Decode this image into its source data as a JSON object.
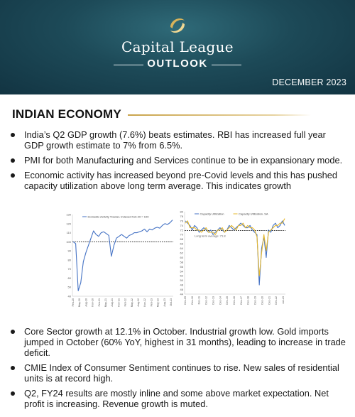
{
  "header": {
    "brand": "Capital League",
    "subtitle": "OUTLOOK",
    "date": "DECEMBER 2023",
    "accent_color": "#c9a34a",
    "background_color": "#1d4a58"
  },
  "section": {
    "title": "INDIAN ECONOMY"
  },
  "bullets_top": [
    "India’s Q2 GDP growth (7.6%) beats estimates. RBI has increased full year GDP growth estimate to 7% from 6.5%.",
    "PMI for both Manufacturing and Services continue to be in expansionary mode.",
    "Economic activity has increased beyond pre-Covid levels and this has pushed capacity utilization above long term average. This indicates growth"
  ],
  "bullets_bottom": [
    "Core Sector growth at 12.1% in October. Industrial growth low. Gold imports jumped in October (60% YoY, highest in 31 months), leading to increase in trade deficit.",
    "CMIE Index of Consumer Sentiment continues to rise. New sales of residential units is at record high.",
    "Q2, FY24 results are mostly inline and some above market expectation. Net profit is increasing. Revenue growth is muted."
  ],
  "chart_data": [
    {
      "type": "line",
      "legend": [
        "Domestic Activity Tracker, Indexed Feb-20 = 100"
      ],
      "ylim": [
        40,
        130
      ],
      "yticks": [
        "130",
        "120",
        "110",
        "100",
        "90",
        "80",
        "70",
        "60",
        "50",
        "40"
      ],
      "xticks": [
        "Feb-20",
        "May-20",
        "Aug-20",
        "Nov-20",
        "Feb-21",
        "May-21",
        "Aug-21",
        "Nov-21",
        "Feb-22",
        "May-22",
        "Aug-22",
        "Nov-22",
        "Feb-23",
        "May-23",
        "Aug-23",
        "Oct-23"
      ],
      "reference_line": 100,
      "series": [
        {
          "name": "Domestic Activity Tracker, Indexed Feb-20 = 100",
          "color": "#4472c4",
          "values": [
            100,
            98,
            46,
            55,
            78,
            88,
            96,
            104,
            112,
            108,
            106,
            110,
            111,
            109,
            107,
            84,
            96,
            104,
            106,
            108,
            106,
            104,
            107,
            108,
            110,
            110,
            111,
            112,
            114,
            111,
            114,
            113,
            115,
            116,
            115,
            118,
            120,
            119,
            121,
            124
          ]
        }
      ]
    },
    {
      "type": "line",
      "legend": [
        "Capacity Utilization",
        "Capacity Utilization, SA"
      ],
      "ylim": [
        44,
        80
      ],
      "yticks": [
        "80",
        "78",
        "76",
        "74",
        "72",
        "70",
        "68",
        "66",
        "64",
        "62",
        "60",
        "58",
        "56",
        "54",
        "52",
        "50",
        "48",
        "46",
        "44"
      ],
      "xticks": [
        "Dec-09",
        "Dec-10",
        "Dec-11",
        "Dec-12",
        "Dec-13",
        "Dec-14",
        "Dec-15",
        "Dec-16",
        "Dec-17",
        "Dec-18",
        "Dec-19",
        "Dec-20",
        "Dec-21",
        "Dec-22",
        "Jun-23"
      ],
      "annotation": "Long term average: 71.8",
      "reference_line": 71.8,
      "series": [
        {
          "name": "Capacity Utilization",
          "color": "#4472c4",
          "values": [
            76,
            75,
            74,
            72,
            74,
            73,
            71,
            72,
            73,
            72,
            71,
            72,
            70,
            71,
            72,
            73,
            72,
            71,
            72,
            74,
            73,
            72,
            73,
            74,
            75,
            74,
            73,
            73,
            74,
            72,
            71,
            70,
            48,
            64,
            69,
            60,
            72,
            71,
            74,
            75,
            73,
            74,
            76,
            74
          ]
        },
        {
          "name": "Capacity Utilization, SA",
          "color": "#e6b82e",
          "values": [
            75,
            76,
            73,
            73,
            73,
            72,
            72,
            71,
            72,
            73,
            71,
            71,
            71,
            70,
            72,
            72,
            73,
            71,
            72,
            73,
            74,
            73,
            72,
            74,
            74,
            75,
            73,
            74,
            73,
            73,
            72,
            69,
            52,
            62,
            70,
            63,
            71,
            72,
            73,
            74,
            74,
            75,
            75,
            77
          ]
        }
      ]
    }
  ]
}
